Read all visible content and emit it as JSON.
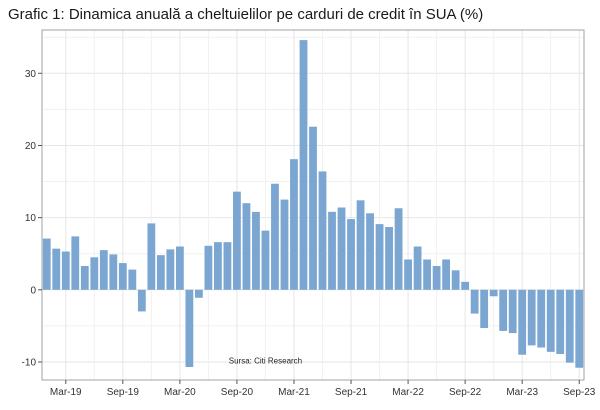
{
  "colors": {
    "bar": "#7aa6d1",
    "grid": "#e6e6e6",
    "axis": "#555555",
    "panel_border": "#8c8c8c"
  },
  "chart_data": {
    "type": "bar",
    "title": "Grafic 1: Dinamica anuală a cheltuielilor pe carduri de credit în SUA (%)",
    "source": "Sursa: Citi Research",
    "xlabel": "",
    "ylabel": "",
    "ylim": [
      -12.5,
      36
    ],
    "yticks": [
      -10,
      0,
      10,
      20,
      30
    ],
    "grid": true,
    "x_tick_labels": [
      {
        "label": "Mar-19",
        "index": 2
      },
      {
        "label": "Sep-19",
        "index": 8
      },
      {
        "label": "Mar-20",
        "index": 14
      },
      {
        "label": "Sep-20",
        "index": 20
      },
      {
        "label": "Mar-21",
        "index": 26
      },
      {
        "label": "Sep-21",
        "index": 32
      },
      {
        "label": "Mar-22",
        "index": 38
      },
      {
        "label": "Sep-22",
        "index": 44
      },
      {
        "label": "Mar-23",
        "index": 50
      },
      {
        "label": "Sep-23",
        "index": 56
      }
    ],
    "categories": [
      "Jan-19",
      "Feb-19",
      "Mar-19",
      "Apr-19",
      "May-19",
      "Jun-19",
      "Jul-19",
      "Aug-19",
      "Sep-19",
      "Oct-19",
      "Nov-19",
      "Dec-19",
      "Jan-20",
      "Feb-20",
      "Mar-20",
      "Apr-20",
      "May-20",
      "Jun-20",
      "Jul-20",
      "Aug-20",
      "Sep-20",
      "Oct-20",
      "Nov-20",
      "Dec-20",
      "Jan-21",
      "Feb-21",
      "Mar-21",
      "Apr-21",
      "May-21",
      "Jun-21",
      "Jul-21",
      "Aug-21",
      "Sep-21",
      "Oct-21",
      "Nov-21",
      "Dec-21",
      "Jan-22",
      "Feb-22",
      "Mar-22",
      "Apr-22",
      "May-22",
      "Jun-22",
      "Jul-22",
      "Aug-22",
      "Sep-22",
      "Oct-22",
      "Nov-22",
      "Dec-22",
      "Jan-23",
      "Feb-23",
      "Mar-23",
      "Apr-23",
      "May-23",
      "Jun-23",
      "Jul-23",
      "Aug-23",
      "Sep-23"
    ],
    "values": [
      7.1,
      5.7,
      5.3,
      7.4,
      3.3,
      4.5,
      5.5,
      4.9,
      3.7,
      2.8,
      -3.0,
      9.2,
      4.8,
      5.6,
      6.0,
      -10.7,
      -1.1,
      6.1,
      6.6,
      6.6,
      13.6,
      12.0,
      10.8,
      8.2,
      14.7,
      12.5,
      18.1,
      34.6,
      22.6,
      16.4,
      10.8,
      11.4,
      9.8,
      12.4,
      10.6,
      9.1,
      8.7,
      11.3,
      4.2,
      6.0,
      4.2,
      3.3,
      4.2,
      2.7,
      1.1,
      -3.3,
      -5.3,
      -0.9,
      -5.7,
      -6.0,
      -9.0,
      -7.7,
      -8.0,
      -8.6,
      -8.9,
      -10.1,
      -10.8
    ]
  }
}
